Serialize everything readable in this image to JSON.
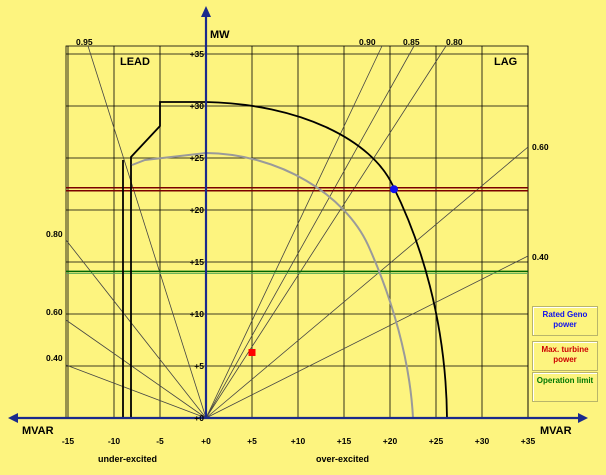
{
  "axes": {
    "y_title": "MW",
    "x_title_left": "MVAR",
    "x_title_right": "MVAR",
    "region_left": "LEAD",
    "region_right": "LAG",
    "bottom_left": "under-excited",
    "bottom_right": "over-excited",
    "x_ticks": [
      "-15",
      "-10",
      "-5",
      "+0",
      "+5",
      "+10",
      "+15",
      "+20",
      "+25",
      "+30",
      "+35"
    ],
    "y_ticks": [
      "+0",
      "+5",
      "+10",
      "+15",
      "+20",
      "+25",
      "+30",
      "+35"
    ]
  },
  "pf_labels": {
    "top_left_095": "0.95",
    "top_090": "0.90",
    "top_085": "0.85",
    "top_080": "0.80",
    "right_060": "0.60",
    "right_040": "0.40",
    "left_080": "0.80",
    "left_060": "0.60",
    "left_040": "0.40"
  },
  "legend": {
    "rated": {
      "label": "Rated Geno power",
      "color": "#1010ee"
    },
    "turbine": {
      "label": "Max. turbine power",
      "color": "#cc0000"
    },
    "operation": {
      "label": "Operation limit",
      "color": "#007700"
    }
  },
  "colors": {
    "background": "#fdf47f",
    "axis": "#1a2a8c",
    "grid": "#000000",
    "capability": "#000000",
    "operation_curve": "#9a9a9a",
    "turbine_line": "#7a0000",
    "operation_line": "#006600"
  },
  "values": {
    "turbine_limit_mw": 22,
    "operation_limit_mw": 14,
    "rated_point": {
      "mvar": 20.5,
      "mw": 22
    },
    "operating_point": {
      "mvar": 5,
      "mw": 6.3
    }
  }
}
